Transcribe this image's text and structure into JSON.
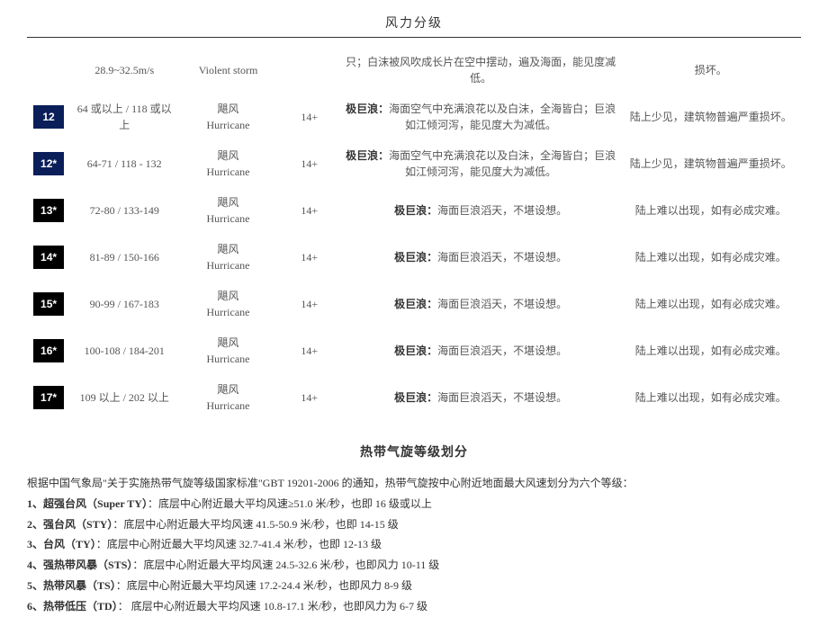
{
  "page_title": "风力分级",
  "badge_text_color": "#ffffff",
  "table": {
    "rows": [
      {
        "level": "",
        "badge_bg": "",
        "speed": "28.9~32.5m/s",
        "name": "Violent storm",
        "wave": "",
        "sea_prefix": "",
        "sea": "只；白沫被风吹成长片在空中摆动，遍及海面，能见度减低。",
        "land": "损坏。"
      },
      {
        "level": "12",
        "badge_bg": "#0a1e5a",
        "speed": "64 或以上 / 118 或以上",
        "name": "飓风\nHurricane",
        "wave": "14+",
        "sea_prefix": "极巨浪：",
        "sea": "海面空气中充满浪花以及白沫，全海皆白；巨浪如江倾河泻，能见度大为减低。",
        "land": "陆上少见，建筑物普遍严重损坏。"
      },
      {
        "level": "12*",
        "badge_bg": "#0a1e5a",
        "speed": "64-71 / 118 - 132",
        "name": "飓风\nHurricane",
        "wave": "14+",
        "sea_prefix": "极巨浪：",
        "sea": "海面空气中充满浪花以及白沫，全海皆白；巨浪如江倾河泻，能见度大为减低。",
        "land": "陆上少见，建筑物普遍严重损坏。"
      },
      {
        "level": "13*",
        "badge_bg": "#000000",
        "speed": "72-80 / 133-149",
        "name": "飓风\nHurricane",
        "wave": "14+",
        "sea_prefix": "极巨浪：",
        "sea": "海面巨浪滔天，不堪设想。",
        "land": "陆上难以出现，如有必成灾难。"
      },
      {
        "level": "14*",
        "badge_bg": "#000000",
        "speed": "81-89 / 150-166",
        "name": "飓风\nHurricane",
        "wave": "14+",
        "sea_prefix": "极巨浪：",
        "sea": "海面巨浪滔天，不堪设想。",
        "land": "陆上难以出现，如有必成灾难。"
      },
      {
        "level": "15*",
        "badge_bg": "#000000",
        "speed": "90-99 / 167-183",
        "name": "飓风\nHurricane",
        "wave": "14+",
        "sea_prefix": "极巨浪：",
        "sea": "海面巨浪滔天，不堪设想。",
        "land": "陆上难以出现，如有必成灾难。"
      },
      {
        "level": "16*",
        "badge_bg": "#000000",
        "speed": "100-108 / 184-201",
        "name": "飓风\nHurricane",
        "wave": "14+",
        "sea_prefix": "极巨浪：",
        "sea": "海面巨浪滔天，不堪设想。",
        "land": "陆上难以出现，如有必成灾难。"
      },
      {
        "level": "17*",
        "badge_bg": "#000000",
        "speed": "109 以上 / 202 以上",
        "name": "飓风\nHurricane",
        "wave": "14+",
        "sea_prefix": "极巨浪：",
        "sea": "海面巨浪滔天，不堪设想。",
        "land": "陆上难以出现，如有必成灾难。"
      }
    ]
  },
  "cyclone": {
    "title": "热带气旋等级划分",
    "intro": "根据中国气象局\"关于实施热带气旋等级国家标准\"GBT 19201-2006 的通知，热带气旋按中心附近地面最大风速划分为六个等级：",
    "items": [
      {
        "num": "1、",
        "zh": "超强台风",
        "en": "（Super TY）",
        "desc": "：底层中心附近最大平均风速≥51.0 米/秒，也即 16 级或以上"
      },
      {
        "num": "2、",
        "zh": "强台风",
        "en": "（STY）",
        "desc": "：底层中心附近最大平均风速 41.5-50.9 米/秒，也即 14-15 级"
      },
      {
        "num": "3、",
        "zh": "台风",
        "en": "（TY）",
        "desc": "：底层中心附近最大平均风速 32.7-41.4 米/秒，也即 12-13 级"
      },
      {
        "num": "4、",
        "zh": "强热带风暴",
        "en": "（STS）",
        "desc": "：底层中心附近最大平均风速 24.5-32.6 米/秒，也即风力 10-11 级"
      },
      {
        "num": "5、",
        "zh": "热带风暴",
        "en": "（TS）",
        "desc": "：底层中心附近最大平均风速 17.2-24.4 米/秒，也即风力 8-9 级"
      },
      {
        "num": "6、",
        "zh": "热带低压",
        "en": "（TD）",
        "desc": "： 底层中心附近最大平均风速 10.8-17.1 米/秒，也即风力为 6-7 级"
      }
    ]
  }
}
